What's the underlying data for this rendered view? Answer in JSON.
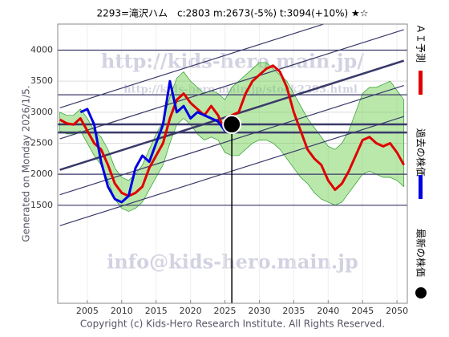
{
  "chart_data": {
    "type": "line",
    "title": "2293=滝沢ハム　c:2803  m:2673(-5%)  t:3094(+10%)  ★☆",
    "generated": "Generated on Monday 2026/1/5.",
    "copyright": "Copyright (c) Kids-Hero Research Institute. All Rights Reserved.",
    "watermarks": [
      "http://kids-hero.main.jp/",
      "http://kids-hero.main.jp/stock2293.html",
      "info@kids-hero.main.jp"
    ],
    "xlim": [
      2000.7,
      2051.5
    ],
    "ylim": [
      -80,
      4420
    ],
    "xticks": [
      2005,
      2010,
      2015,
      2020,
      2025,
      2030,
      2035,
      2040,
      2045,
      2050
    ],
    "yticks": [
      1500,
      2000,
      2500,
      3000,
      3500,
      4000
    ],
    "grid": true,
    "series": [
      {
        "name": "ＡＩ予測",
        "color": "#e00000",
        "x": [
          2001,
          2002,
          2003,
          2004,
          2005,
          2006,
          2007,
          2008,
          2009,
          2010,
          2011,
          2012,
          2013,
          2014,
          2015,
          2016,
          2017,
          2018,
          2019,
          2020,
          2021,
          2022,
          2023,
          2024,
          2025,
          2026,
          2027,
          2028,
          2029,
          2030,
          2031,
          2032,
          2033,
          2034,
          2035,
          2036,
          2037,
          2038,
          2039,
          2040,
          2041,
          2042,
          2043,
          2044,
          2045,
          2046,
          2047,
          2048,
          2049,
          2050,
          2051
        ],
        "values": [
          2880,
          2820,
          2800,
          2900,
          2700,
          2500,
          2400,
          2150,
          1850,
          1700,
          1650,
          1700,
          1800,
          2100,
          2300,
          2500,
          2900,
          3200,
          3300,
          3150,
          3050,
          2950,
          3100,
          2950,
          2700,
          2950,
          3000,
          3300,
          3500,
          3600,
          3700,
          3750,
          3650,
          3400,
          3000,
          2700,
          2400,
          2250,
          2150,
          1900,
          1750,
          1850,
          2050,
          2300,
          2550,
          2600,
          2500,
          2450,
          2500,
          2350,
          2150
        ]
      },
      {
        "name": "過去の株価",
        "color": "#0000e0",
        "x": [
          2004,
          2005,
          2006,
          2007,
          2008,
          2009,
          2010,
          2011,
          2012,
          2013,
          2014,
          2015,
          2016,
          2017,
          2018,
          2019,
          2020,
          2021,
          2022,
          2023,
          2024,
          2025,
          2026
        ],
        "values": [
          3000,
          3050,
          2800,
          2200,
          1800,
          1600,
          1550,
          1650,
          2100,
          2300,
          2200,
          2500,
          2800,
          3500,
          3000,
          3100,
          2900,
          3000,
          2950,
          2900,
          2850,
          2700,
          2803
        ]
      }
    ],
    "band": {
      "color": "#66cc44",
      "lower": [
        2700,
        2650,
        2650,
        2700,
        2500,
        2300,
        2150,
        1900,
        1600,
        1450,
        1400,
        1450,
        1550,
        1750,
        1950,
        2150,
        2500,
        2800,
        2900,
        2800,
        2650,
        2550,
        2600,
        2550,
        2350,
        2300,
        2300,
        2400,
        2500,
        2550,
        2550,
        2500,
        2400,
        2250,
        2100,
        1950,
        1850,
        1700,
        1600,
        1550,
        1500,
        1550,
        1700,
        1850,
        2000,
        2050,
        2000,
        1950,
        1950,
        1900,
        1800
      ],
      "upper": [
        3000,
        2950,
        2950,
        3050,
        2900,
        2700,
        2600,
        2400,
        2100,
        1950,
        1900,
        2000,
        2150,
        2400,
        2650,
        2850,
        3250,
        3550,
        3650,
        3500,
        3400,
        3300,
        3350,
        3300,
        3200,
        3400,
        3500,
        3600,
        3700,
        3800,
        3800,
        3700,
        3600,
        3500,
        3300,
        3100,
        2900,
        2750,
        2600,
        2450,
        2400,
        2500,
        2700,
        3000,
        3300,
        3400,
        3400,
        3450,
        3500,
        3350,
        3200
      ]
    },
    "latest": {
      "name": "最新の株価",
      "x": 2026,
      "value": 2803,
      "color": "#000000"
    },
    "hlines": [
      4000,
      3280,
      2803,
      2673,
      2000,
      1500
    ],
    "trend_lines": [
      {
        "x": [
          2001,
          2051
        ],
        "y": [
          1170,
          2930
        ]
      },
      {
        "x": [
          2001,
          2051
        ],
        "y": [
          1670,
          3430
        ]
      },
      {
        "x": [
          2001,
          2051
        ],
        "y": [
          2070,
          3830
        ]
      },
      {
        "x": [
          2001,
          2051
        ],
        "y": [
          2570,
          4330
        ]
      },
      {
        "x": [
          2001,
          2051
        ],
        "y": [
          3070,
          4830
        ]
      }
    ]
  }
}
